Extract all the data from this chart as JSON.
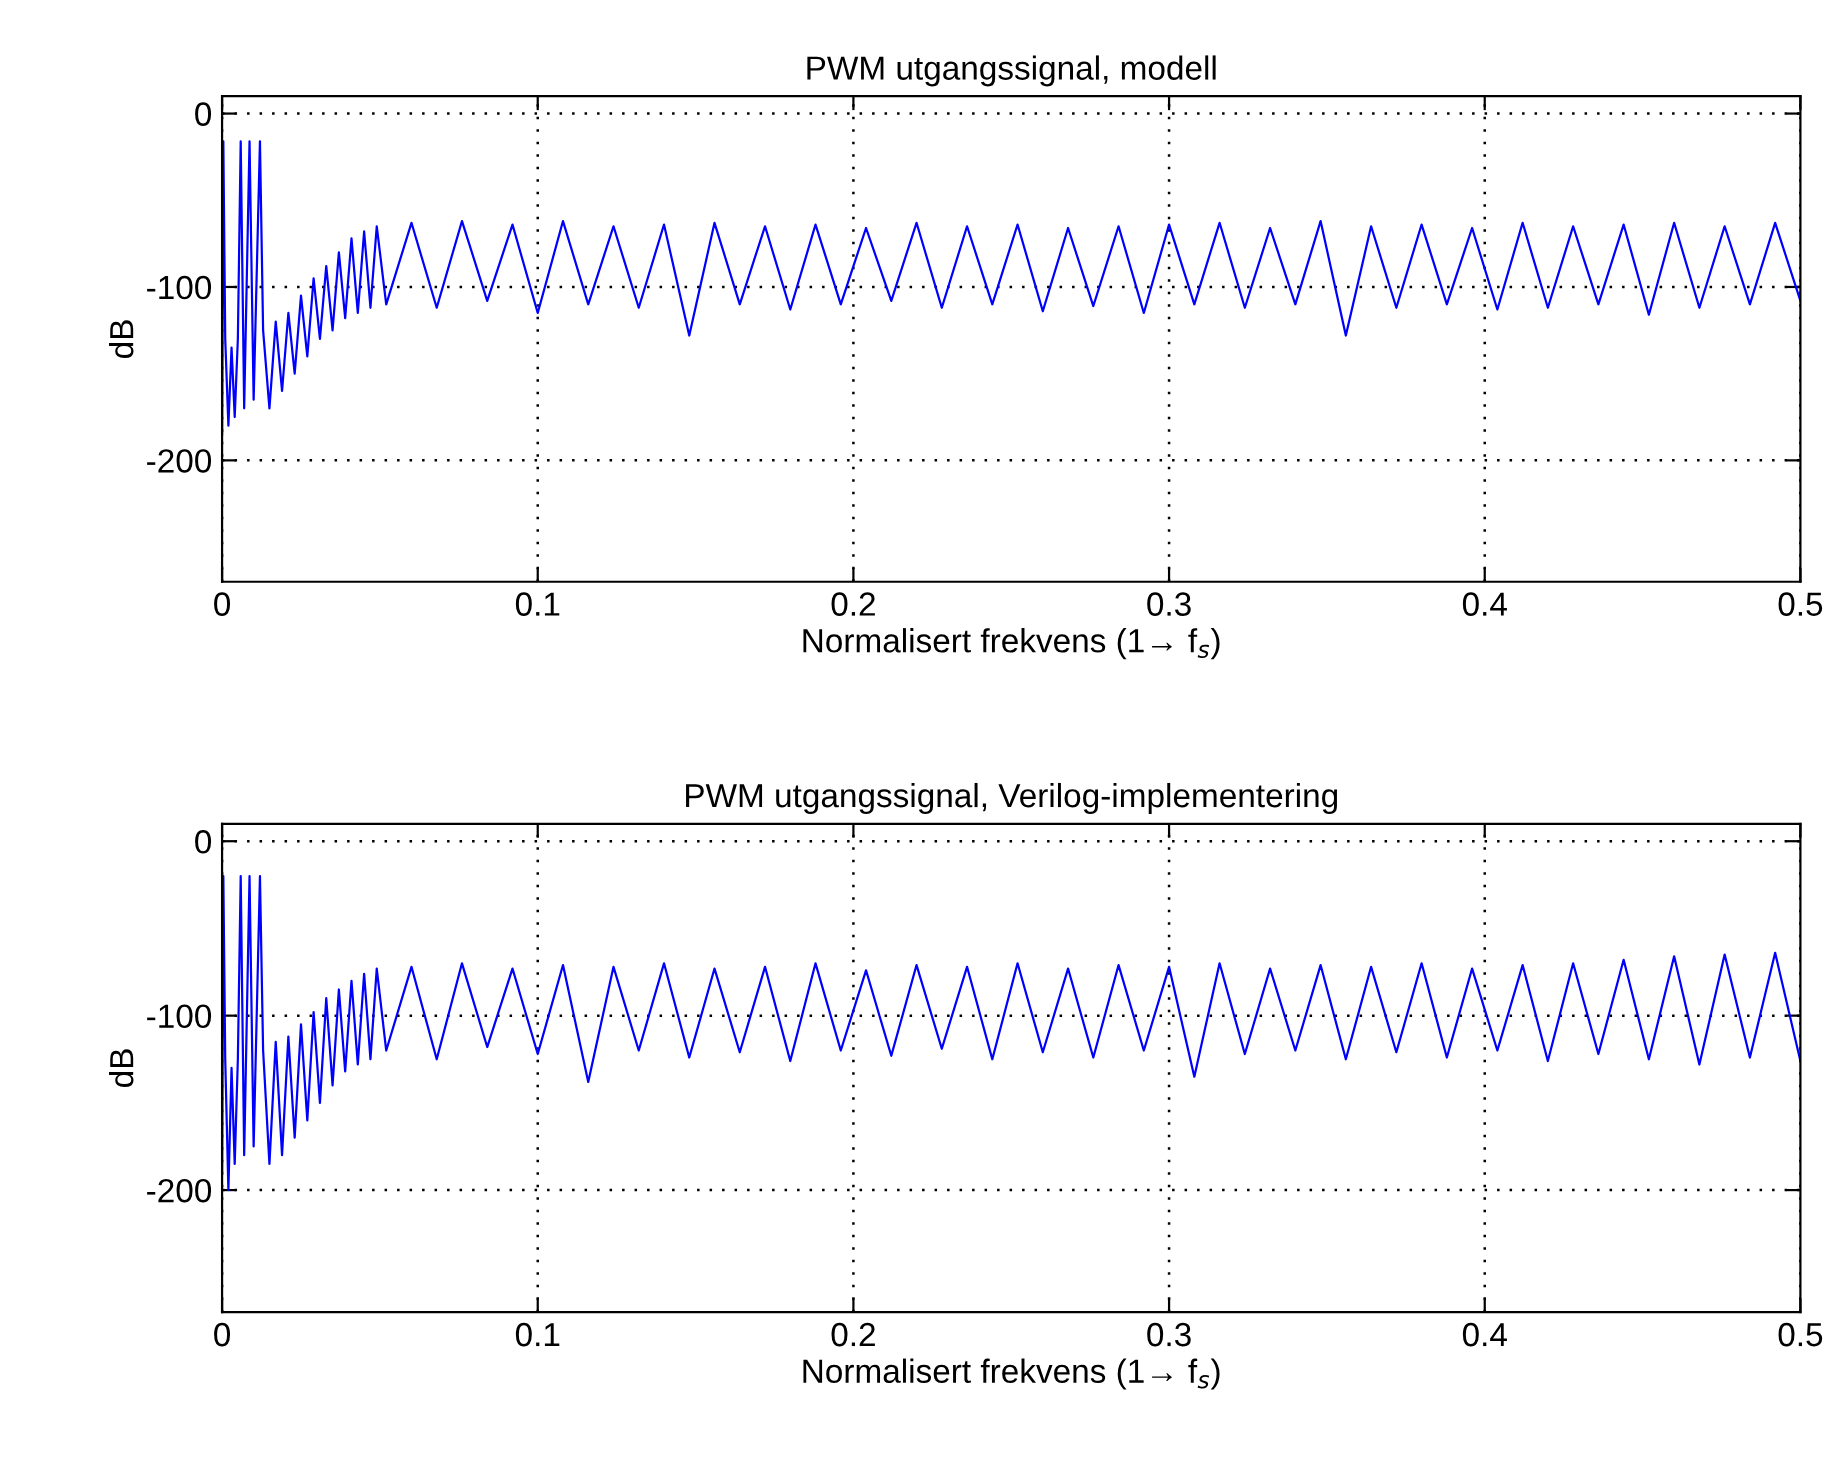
{
  "chart_data": [
    {
      "type": "line",
      "title": "PWM utgangssignal, modell",
      "xlabel": "Normalisert frekvens (1→ f$_{s}$)",
      "ylabel": "dB",
      "xlim": [
        0,
        0.5
      ],
      "xticks": [
        0,
        0.1,
        0.2,
        0.3,
        0.4,
        0.5
      ],
      "ylim": [
        -270,
        10
      ],
      "yticks": [
        -200,
        -100,
        0
      ],
      "grid": true,
      "line_style": "solid",
      "marker": "none",
      "series": [
        {
          "color": "#0000ff",
          "x": [
            0,
            0.0004,
            0.001,
            0.002,
            0.003,
            0.004,
            0.005,
            0.0059,
            0.007,
            0.0087,
            0.01,
            0.012,
            0.013,
            0.015,
            0.017,
            0.019,
            0.021,
            0.023,
            0.025,
            0.027,
            0.029,
            0.031,
            0.033,
            0.035,
            0.037,
            0.039,
            0.041,
            0.043,
            0.045,
            0.047,
            0.049,
            0.052,
            0.06,
            0.068,
            0.076,
            0.084,
            0.092,
            0.1,
            0.108,
            0.116,
            0.124,
            0.132,
            0.14,
            0.148,
            0.156,
            0.164,
            0.172,
            0.18,
            0.188,
            0.196,
            0.204,
            0.212,
            0.22,
            0.228,
            0.236,
            0.244,
            0.252,
            0.26,
            0.268,
            0.276,
            0.284,
            0.292,
            0.3,
            0.308,
            0.316,
            0.324,
            0.332,
            0.34,
            0.348,
            0.356,
            0.364,
            0.372,
            0.38,
            0.388,
            0.396,
            0.404,
            0.412,
            0.42,
            0.428,
            0.436,
            0.444,
            0.452,
            0.46,
            0.468,
            0.476,
            0.484,
            0.492,
            0.5
          ],
          "values": [
            -185,
            -16,
            -130,
            -180,
            -135,
            -175,
            -130,
            -16,
            -170,
            -16,
            -165,
            -16,
            -125,
            -170,
            -120,
            -160,
            -115,
            -150,
            -105,
            -140,
            -95,
            -130,
            -88,
            -125,
            -80,
            -118,
            -72,
            -115,
            -68,
            -112,
            -65,
            -110,
            -63,
            -112,
            -62,
            -108,
            -64,
            -115,
            -62,
            -110,
            -65,
            -112,
            -64,
            -128,
            -63,
            -110,
            -65,
            -113,
            -64,
            -110,
            -66,
            -108,
            -63,
            -112,
            -65,
            -110,
            -64,
            -114,
            -66,
            -111,
            -65,
            -115,
            -64,
            -110,
            -63,
            -112,
            -66,
            -110,
            -62,
            -128,
            -65,
            -112,
            -64,
            -110,
            -66,
            -113,
            -63,
            -112,
            -65,
            -110,
            -64,
            -116,
            -63,
            -112,
            -65,
            -110,
            -63,
            -108
          ]
        }
      ]
    },
    {
      "type": "line",
      "title": "PWM utgangssignal, Verilog-implementering",
      "xlabel": "Normalisert frekvens (1→ f$_{s}$)",
      "ylabel": "dB",
      "xlim": [
        0,
        0.5
      ],
      "xticks": [
        0,
        0.1,
        0.2,
        0.3,
        0.4,
        0.5
      ],
      "ylim": [
        -270,
        10
      ],
      "yticks": [
        -200,
        -100,
        0
      ],
      "grid": true,
      "line_style": "solid",
      "marker": "none",
      "series": [
        {
          "color": "#0000ff",
          "x": [
            0,
            0.0004,
            0.001,
            0.002,
            0.003,
            0.004,
            0.005,
            0.0059,
            0.007,
            0.0087,
            0.01,
            0.012,
            0.013,
            0.015,
            0.017,
            0.019,
            0.021,
            0.023,
            0.025,
            0.027,
            0.029,
            0.031,
            0.033,
            0.035,
            0.037,
            0.039,
            0.041,
            0.043,
            0.045,
            0.047,
            0.049,
            0.052,
            0.06,
            0.068,
            0.076,
            0.084,
            0.092,
            0.1,
            0.108,
            0.116,
            0.124,
            0.132,
            0.14,
            0.148,
            0.156,
            0.164,
            0.172,
            0.18,
            0.188,
            0.196,
            0.204,
            0.212,
            0.22,
            0.228,
            0.236,
            0.244,
            0.252,
            0.26,
            0.268,
            0.276,
            0.284,
            0.292,
            0.3,
            0.308,
            0.316,
            0.324,
            0.332,
            0.34,
            0.348,
            0.356,
            0.364,
            0.372,
            0.38,
            0.388,
            0.396,
            0.404,
            0.412,
            0.42,
            0.428,
            0.436,
            0.444,
            0.452,
            0.46,
            0.468,
            0.476,
            0.484,
            0.492,
            0.5
          ],
          "values": [
            -190,
            -20,
            -125,
            -200,
            -130,
            -185,
            -125,
            -20,
            -180,
            -20,
            -175,
            -20,
            -120,
            -185,
            -115,
            -180,
            -112,
            -170,
            -105,
            -160,
            -98,
            -150,
            -90,
            -140,
            -85,
            -132,
            -80,
            -128,
            -76,
            -125,
            -73,
            -120,
            -72,
            -125,
            -70,
            -118,
            -73,
            -122,
            -71,
            -138,
            -72,
            -120,
            -70,
            -124,
            -73,
            -121,
            -72,
            -126,
            -70,
            -120,
            -74,
            -123,
            -71,
            -119,
            -72,
            -125,
            -70,
            -121,
            -73,
            -124,
            -71,
            -120,
            -72,
            -135,
            -70,
            -122,
            -73,
            -120,
            -71,
            -125,
            -72,
            -121,
            -70,
            -124,
            -73,
            -120,
            -71,
            -126,
            -70,
            -122,
            -68,
            -125,
            -66,
            -128,
            -65,
            -124,
            -64,
            -126
          ]
        }
      ]
    }
  ]
}
